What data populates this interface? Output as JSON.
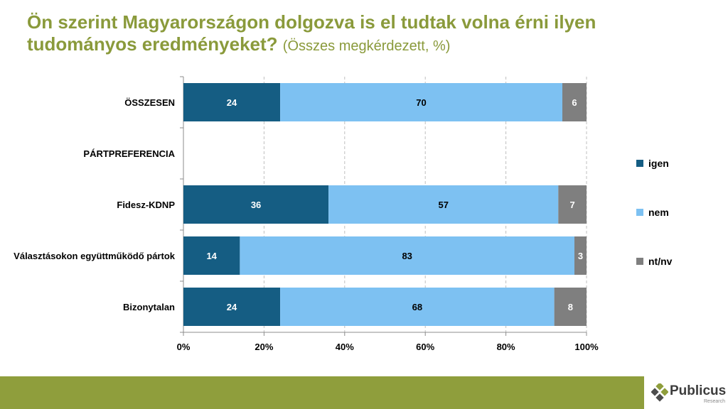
{
  "title": "Ön szerint Magyarországon dolgozva is el tudtak volna érni ilyen tudományos eredményeket?",
  "subtitle": "(Összes megkérdezett, %)",
  "logo": {
    "name": "Publicus",
    "sub": "Research"
  },
  "colors": {
    "igen": "#155d83",
    "nem": "#7dc1f2",
    "nt_nv": "#7f7f7f",
    "title": "#8a9a3b",
    "footer": "#8f9e3c"
  },
  "chart_data": {
    "type": "bar",
    "orientation": "horizontal",
    "stacked": true,
    "categories": [
      "ÖSSZESEN",
      "PÁRTPREFERENCIA",
      "Fidesz-KDNP",
      "Választásokon együttműködő pártok",
      "Bizonytalan"
    ],
    "series": [
      {
        "name": "igen",
        "values": [
          24,
          null,
          36,
          14,
          24
        ]
      },
      {
        "name": "nem",
        "values": [
          70,
          null,
          57,
          83,
          68
        ]
      },
      {
        "name": "nt/nv",
        "values": [
          6,
          null,
          7,
          3,
          8
        ]
      }
    ],
    "x_ticks": [
      "0%",
      "20%",
      "40%",
      "60%",
      "80%",
      "100%"
    ],
    "xlim": [
      0,
      100
    ],
    "grid": "vertical dashed",
    "legend": "right"
  }
}
